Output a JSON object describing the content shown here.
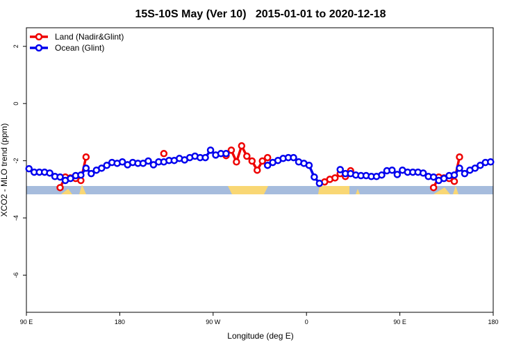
{
  "chart_data": {
    "type": "line",
    "title": "15S-10S May (Ver 10)   2015-01-01 to 2020-12-18",
    "xlabel": "Longitude (deg E)",
    "ylabel": "XCO2 - MLO trend (ppm)",
    "legend": "top-left",
    "xlim": [
      90,
      540
    ],
    "ylim": [
      -7.3,
      2.65
    ],
    "xticks": [
      {
        "value": 90,
        "label": "90 E"
      },
      180,
      {
        "value": 270,
        "label": "90 W"
      },
      {
        "value": 360,
        "label": "0"
      },
      {
        "value": 450,
        "label": "90 E"
      },
      {
        "value": 540,
        "label": "180"
      }
    ],
    "yticks": [
      2,
      0,
      -2,
      -4,
      -6
    ],
    "x": [
      92.5,
      97.5,
      102.5,
      107.5,
      112.5,
      117.5,
      122.5,
      127.5,
      132.5,
      137.5,
      142.5,
      147.5,
      152.5,
      157.5,
      162.5,
      167.5,
      172.5,
      177.5,
      182.5,
      187.5,
      192.5,
      197.5,
      202.5,
      207.5,
      212.5,
      217.5,
      222.5,
      227.5,
      232.5,
      237.5,
      242.5,
      247.5,
      252.5,
      257.5,
      262.5,
      267.5,
      272.5,
      277.5,
      282.5,
      287.5,
      292.5,
      297.5,
      302.5,
      307.5,
      312.5,
      317.5,
      322.5,
      327.5,
      332.5,
      337.5,
      342.5,
      347.5,
      352.5,
      357.5,
      362.5,
      367.5,
      372.5,
      377.5,
      382.5,
      387.5,
      392.5,
      397.5,
      402.5,
      407.5,
      412.5,
      417.5,
      422.5,
      427.5,
      432.5,
      437.5,
      442.5,
      447.5,
      452.5,
      457.5,
      462.5,
      467.5,
      472.5,
      477.5,
      482.5,
      487.5,
      492.5,
      497.5,
      502.5,
      507.5,
      512.5,
      517.5,
      522.5,
      527.5,
      532.5,
      537.5
    ],
    "series": [
      {
        "name": "Land (Nadir&Glint)",
        "color": "#ee0000",
        "values": [
          null,
          null,
          null,
          null,
          null,
          null,
          -2.94,
          -2.57,
          -2.6,
          -2.62,
          -2.69,
          -1.87,
          null,
          null,
          null,
          null,
          null,
          null,
          null,
          null,
          null,
          null,
          null,
          null,
          null,
          null,
          -1.75,
          null,
          null,
          null,
          null,
          null,
          null,
          null,
          null,
          null,
          null,
          null,
          -1.82,
          -1.63,
          -2.04,
          -1.48,
          -1.84,
          -2.01,
          -2.33,
          -2.01,
          -1.89,
          null,
          null,
          null,
          null,
          null,
          null,
          null,
          null,
          null,
          null,
          -2.74,
          -2.65,
          -2.6,
          -2.45,
          -2.55,
          -2.35,
          null,
          null,
          null,
          null,
          null,
          null,
          null,
          null,
          null,
          null,
          null,
          null,
          null,
          null,
          null,
          -2.94,
          -2.57,
          -2.6,
          -2.62,
          -2.72,
          -1.87,
          null,
          null,
          null,
          null,
          null,
          null
        ]
      },
      {
        "name": "Ocean (Glint)",
        "color": "#0000ee",
        "values": [
          -2.28,
          -2.4,
          -2.4,
          -2.4,
          -2.43,
          -2.55,
          -2.57,
          -2.69,
          -2.62,
          -2.52,
          -2.5,
          -2.26,
          -2.45,
          -2.33,
          -2.26,
          -2.16,
          -2.06,
          -2.09,
          -2.04,
          -2.14,
          -2.06,
          -2.09,
          -2.09,
          -2.01,
          -2.14,
          -2.04,
          -2.04,
          -1.99,
          -1.99,
          -1.92,
          -1.97,
          -1.89,
          -1.84,
          -1.89,
          -1.89,
          -1.63,
          -1.8,
          -1.75,
          -1.75,
          null,
          null,
          null,
          null,
          null,
          null,
          null,
          -2.16,
          -2.06,
          -1.99,
          -1.92,
          -1.89,
          -1.89,
          -2.04,
          -2.09,
          -2.16,
          -2.57,
          -2.79,
          null,
          null,
          null,
          -2.31,
          -2.45,
          -2.45,
          -2.5,
          -2.52,
          -2.52,
          -2.55,
          -2.55,
          -2.5,
          -2.35,
          -2.33,
          -2.48,
          -2.33,
          -2.4,
          -2.4,
          -2.4,
          -2.43,
          -2.55,
          -2.57,
          -2.69,
          -2.62,
          -2.52,
          -2.5,
          -2.26,
          -2.45,
          -2.33,
          -2.26,
          -2.16,
          -2.06,
          -2.04
        ]
      }
    ]
  }
}
